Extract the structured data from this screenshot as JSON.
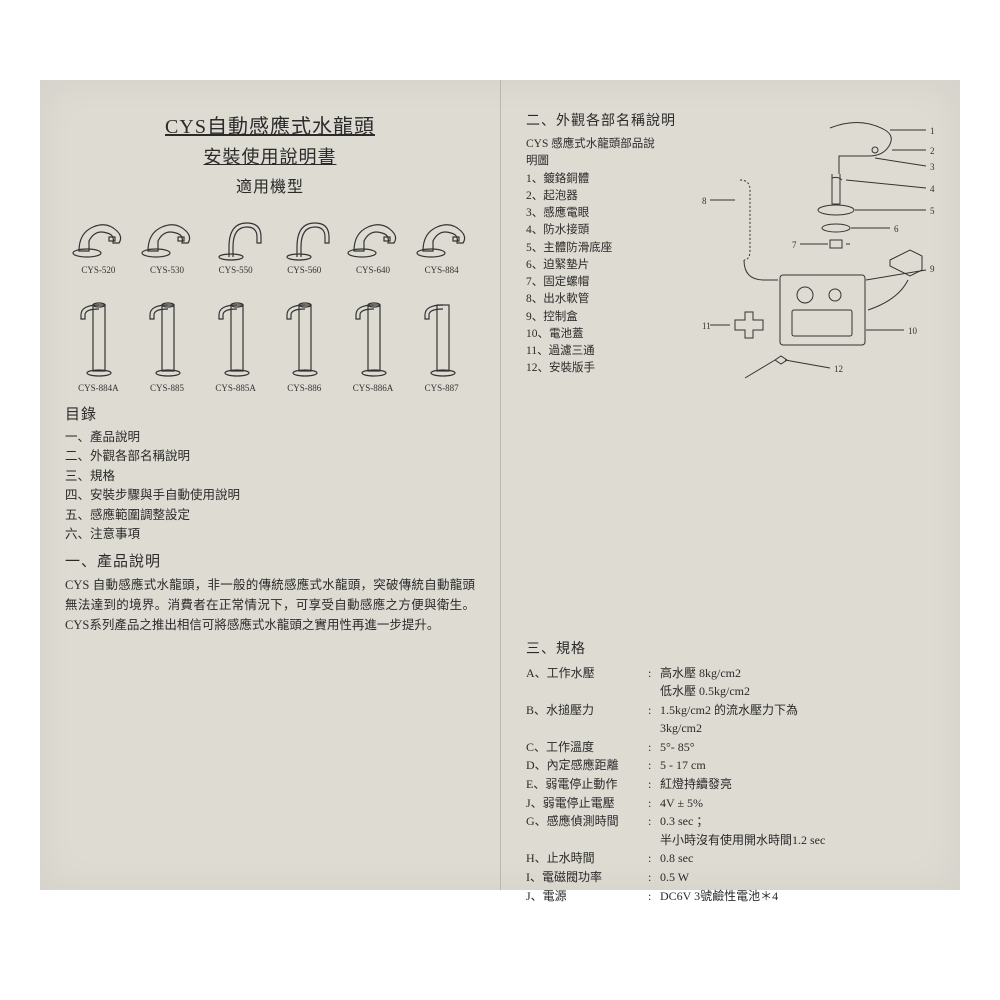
{
  "colors": {
    "paper_bg": "#dedbd3",
    "text": "#2a2a2a",
    "line": "#333333"
  },
  "left": {
    "title1": "CYS自動感應式水龍頭",
    "title2": "安裝使用說明書",
    "title3": "適用機型",
    "faucets_row1": [
      {
        "label": "CYS-520"
      },
      {
        "label": "CYS-530"
      },
      {
        "label": "CYS-550"
      },
      {
        "label": "CYS-560"
      },
      {
        "label": "CYS-640"
      },
      {
        "label": "CYS-884"
      }
    ],
    "faucets_row2": [
      {
        "label": "CYS-884A"
      },
      {
        "label": "CYS-885"
      },
      {
        "label": "CYS-885A"
      },
      {
        "label": "CYS-886"
      },
      {
        "label": "CYS-886A"
      },
      {
        "label": "CYS-887"
      }
    ],
    "toc_heading": "目錄",
    "toc": [
      "一、產品說明",
      "二、外觀各部名稱說明",
      "三、規格",
      "四、安裝步驟與手自動使用說明",
      "五、感應範圍調整設定",
      "六、注意事項"
    ],
    "sec1_heading": "一、產品說明",
    "sec1_body": "CYS 自動感應式水龍頭，非一般的傳統感應式水龍頭，突破傳統自動龍頭無法達到的境界。消費者在正常情況下，可享受自動感應之方便與衛生。CYS系列產品之推出相信可將感應式水龍頭之實用性再進一步提升。"
  },
  "right": {
    "sec2_heading": "二、外觀各部名稱說明",
    "parts_intro": "CYS 感應式水龍頭部品說明圖",
    "parts": [
      "1、鍍鉻銅體",
      "2、起泡器",
      "3、感應電眼",
      "4、防水接頭",
      "5、主體防滑底座",
      "6、迫緊墊片",
      "7、固定螺帽",
      "8、出水軟管",
      "9、控制盒",
      "10、電池蓋",
      "11、過濾三通",
      "12、安裝版手"
    ],
    "sec3_heading": "三、規格",
    "specs": [
      {
        "k": "A、工作水壓",
        "v": "高水壓 8kg/cm2",
        "sub": "低水壓 0.5kg/cm2"
      },
      {
        "k": "B、水搥壓力",
        "v": "1.5kg/cm2 的流水壓力下為",
        "sub": "3kg/cm2"
      },
      {
        "k": "C、工作溫度",
        "v": "5°- 85°"
      },
      {
        "k": "D、內定感應距離",
        "v": "5 - 17 cm"
      },
      {
        "k": "E、弱電停止動作",
        "v": "紅燈持續發亮"
      },
      {
        "k": "J、弱電停止電壓",
        "v": "4V ± 5%"
      },
      {
        "k": "G、感應偵測時間",
        "v": "0.3 sec ；",
        "sub": "半小時沒有使用開水時間1.2 sec"
      },
      {
        "k": "H、止水時間",
        "v": "0.8 sec"
      },
      {
        "k": "I、電磁閥功率",
        "v": "0.5 W"
      },
      {
        "k": "J、電源",
        "v": "DC6V 3號鹼性電池＊4"
      }
    ]
  }
}
